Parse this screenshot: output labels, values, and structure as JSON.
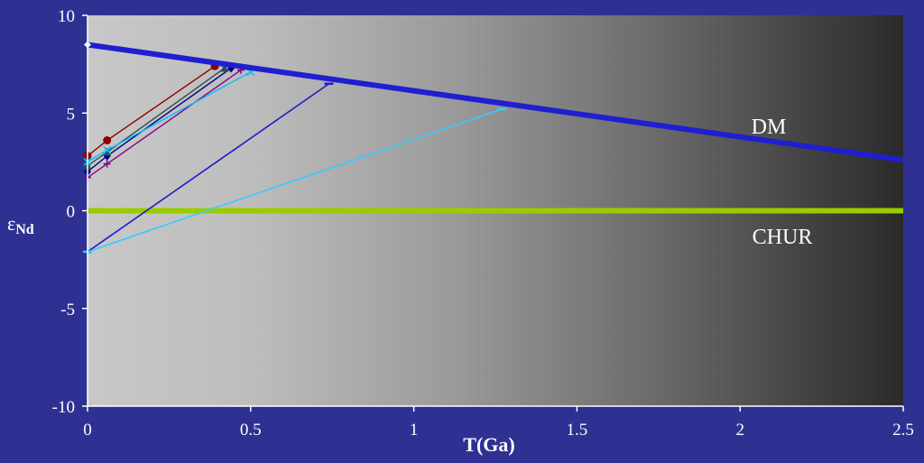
{
  "chart_data": {
    "type": "line",
    "xlabel": "T(Ga)",
    "ylabel": "εNd",
    "ylabel_main": "ε",
    "ylabel_sub": "Nd",
    "xlim": [
      0,
      2.5
    ],
    "ylim": [
      -10,
      10
    ],
    "x_ticks": [
      "0",
      "0.5",
      "1",
      "1.5",
      "2",
      "2.5"
    ],
    "y_ticks": [
      "10",
      "5",
      "0",
      "-5",
      "-10"
    ],
    "grid": false,
    "legend": "none",
    "annotations": {
      "dm": "DM",
      "chur": "CHUR"
    },
    "series": [
      {
        "name": "DM",
        "color": "#1f1fcf",
        "x": [
          0,
          2.5
        ],
        "y": [
          8.5,
          2.6
        ]
      },
      {
        "name": "CHUR",
        "color": "#99cc00",
        "x": [
          0,
          2.5
        ],
        "y": [
          0,
          0
        ]
      }
    ],
    "evolution_lines": [
      {
        "color": "#8b0000",
        "marker": "circle",
        "x": [
          0,
          0.06,
          0.39
        ],
        "y": [
          2.8,
          3.6,
          7.4
        ]
      },
      {
        "color": "#00008b",
        "marker": "diamond",
        "x": [
          0,
          0.06,
          0.44
        ],
        "y": [
          2.0,
          2.8,
          7.3
        ]
      },
      {
        "color": "#2f4f4f",
        "marker": "triangle",
        "x": [
          0,
          0.06,
          0.42
        ],
        "y": [
          2.3,
          3.0,
          7.3
        ]
      },
      {
        "color": "#8b008b",
        "marker": "cross",
        "x": [
          0,
          0.06,
          0.47
        ],
        "y": [
          1.7,
          2.4,
          7.2
        ]
      },
      {
        "color": "#00bfff",
        "marker": "x",
        "x": [
          0,
          0.06,
          0.5
        ],
        "y": [
          2.5,
          3.1,
          7.1
        ]
      },
      {
        "color": "#1e1ec8",
        "marker": "dash",
        "x": [
          0,
          0.74
        ],
        "y": [
          -2.1,
          6.5
        ]
      },
      {
        "color": "#33ccff",
        "marker": "dash",
        "x": [
          0,
          1.27
        ],
        "y": [
          -2.1,
          5.2
        ]
      }
    ],
    "dm_present_value": 8.5
  }
}
